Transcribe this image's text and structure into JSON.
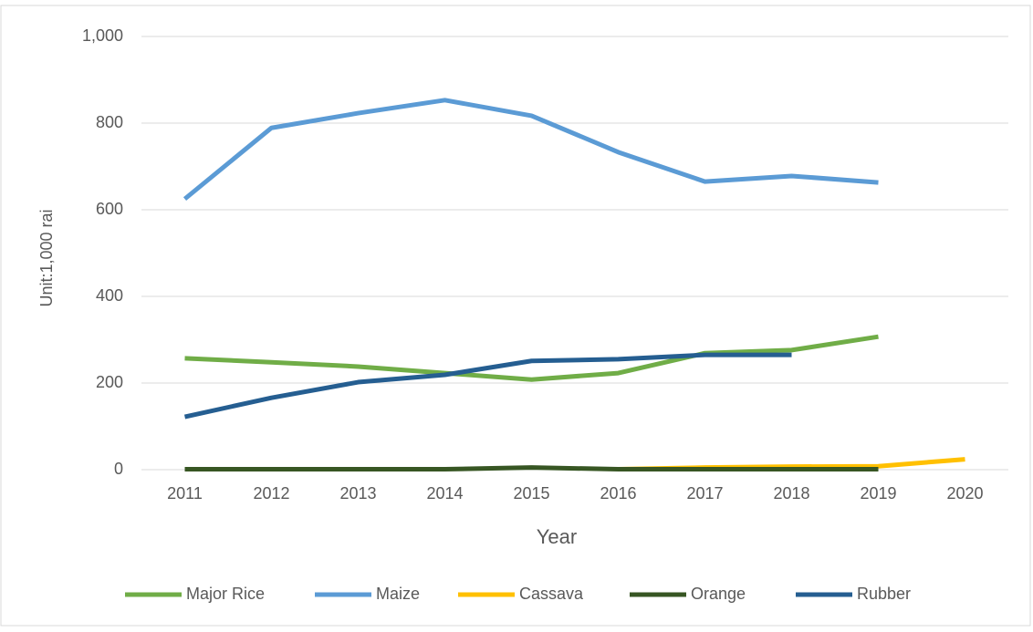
{
  "chart_data": {
    "type": "line",
    "x_label": "Year",
    "y_label": "Unit:1,000 rai",
    "categories": [
      "2011",
      "2012",
      "2013",
      "2014",
      "2015",
      "2016",
      "2017",
      "2018",
      "2019",
      "2020"
    ],
    "series": [
      {
        "name": "Major Rice",
        "color": "#70ad47",
        "values": [
          257,
          248,
          238,
          223,
          208,
          223,
          269,
          276,
          307,
          null
        ]
      },
      {
        "name": "Maize",
        "color": "#5b9bd5",
        "values": [
          625,
          789,
          823,
          853,
          817,
          733,
          665,
          678,
          663,
          null
        ]
      },
      {
        "name": "Cassava",
        "color": "#ffc000",
        "values": [
          null,
          null,
          null,
          null,
          null,
          1,
          5,
          7,
          8,
          24
        ]
      },
      {
        "name": "Orange",
        "color": "#375623",
        "values": [
          1,
          1,
          1,
          1,
          5,
          1,
          1,
          1,
          1,
          null
        ]
      },
      {
        "name": "Rubber",
        "color": "#255e91",
        "values": [
          122,
          166,
          202,
          219,
          251,
          255,
          265,
          265,
          null,
          null
        ]
      }
    ],
    "ylim": [
      0,
      1000
    ],
    "yticks": [
      0,
      200,
      400,
      600,
      800,
      {
        "value": 1000,
        "label": "1,000"
      }
    ],
    "grid": true,
    "legend": "bottom"
  }
}
